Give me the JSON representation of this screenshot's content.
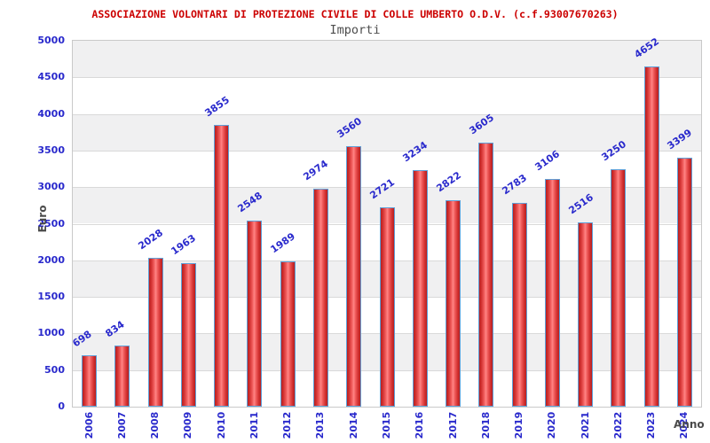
{
  "header": {
    "title": "ASSOCIAZIONE VOLONTARI DI PROTEZIONE CIVILE DI COLLE UMBERTO O.D.V. (c.f.93007670263)",
    "subtitle": "Importi"
  },
  "chart_data": {
    "type": "bar",
    "title": "ASSOCIAZIONE VOLONTARI DI PROTEZIONE CIVILE DI COLLE UMBERTO O.D.V. (c.f.93007670263)",
    "subtitle": "Importi",
    "categories": [
      "2006",
      "2007",
      "2008",
      "2009",
      "2010",
      "2011",
      "2012",
      "2013",
      "2014",
      "2015",
      "2016",
      "2017",
      "2018",
      "2019",
      "2020",
      "2021",
      "2022",
      "2023",
      "2024"
    ],
    "values": [
      698,
      834,
      2028,
      1963,
      3855,
      2548,
      1989,
      2974,
      3560,
      2721,
      3234,
      2822,
      3605,
      2783,
      3106,
      2516,
      3250,
      4652,
      3399
    ],
    "xlabel": "Anno",
    "ylabel": "Euro",
    "ylim": [
      0,
      5000
    ],
    "ytick_step": 500,
    "y_ticks": [
      "0",
      "500",
      "1000",
      "1500",
      "2000",
      "2500",
      "3000",
      "3500",
      "4000",
      "4500",
      "5000"
    ],
    "bar_value_labels_shown": true,
    "legend": "none",
    "grid": "alternating horizontal gray bands every 500 with light gridlines",
    "colors": {
      "title_red": "#cc0000",
      "subtitle_gray": "#4d4d4d",
      "label_blue": "#2929cc",
      "axis_label_gray": "#4a4a4a",
      "bar_border_blue": "#5fa0d8",
      "bar_fill_edge": "#b61f1f",
      "bar_fill_center": "#ff8585",
      "band_gray": "#f0f0f1",
      "gridline_gray": "#d9d9d9",
      "plot_border_gray": "#c9c9c9",
      "background": "#ffffff"
    }
  }
}
